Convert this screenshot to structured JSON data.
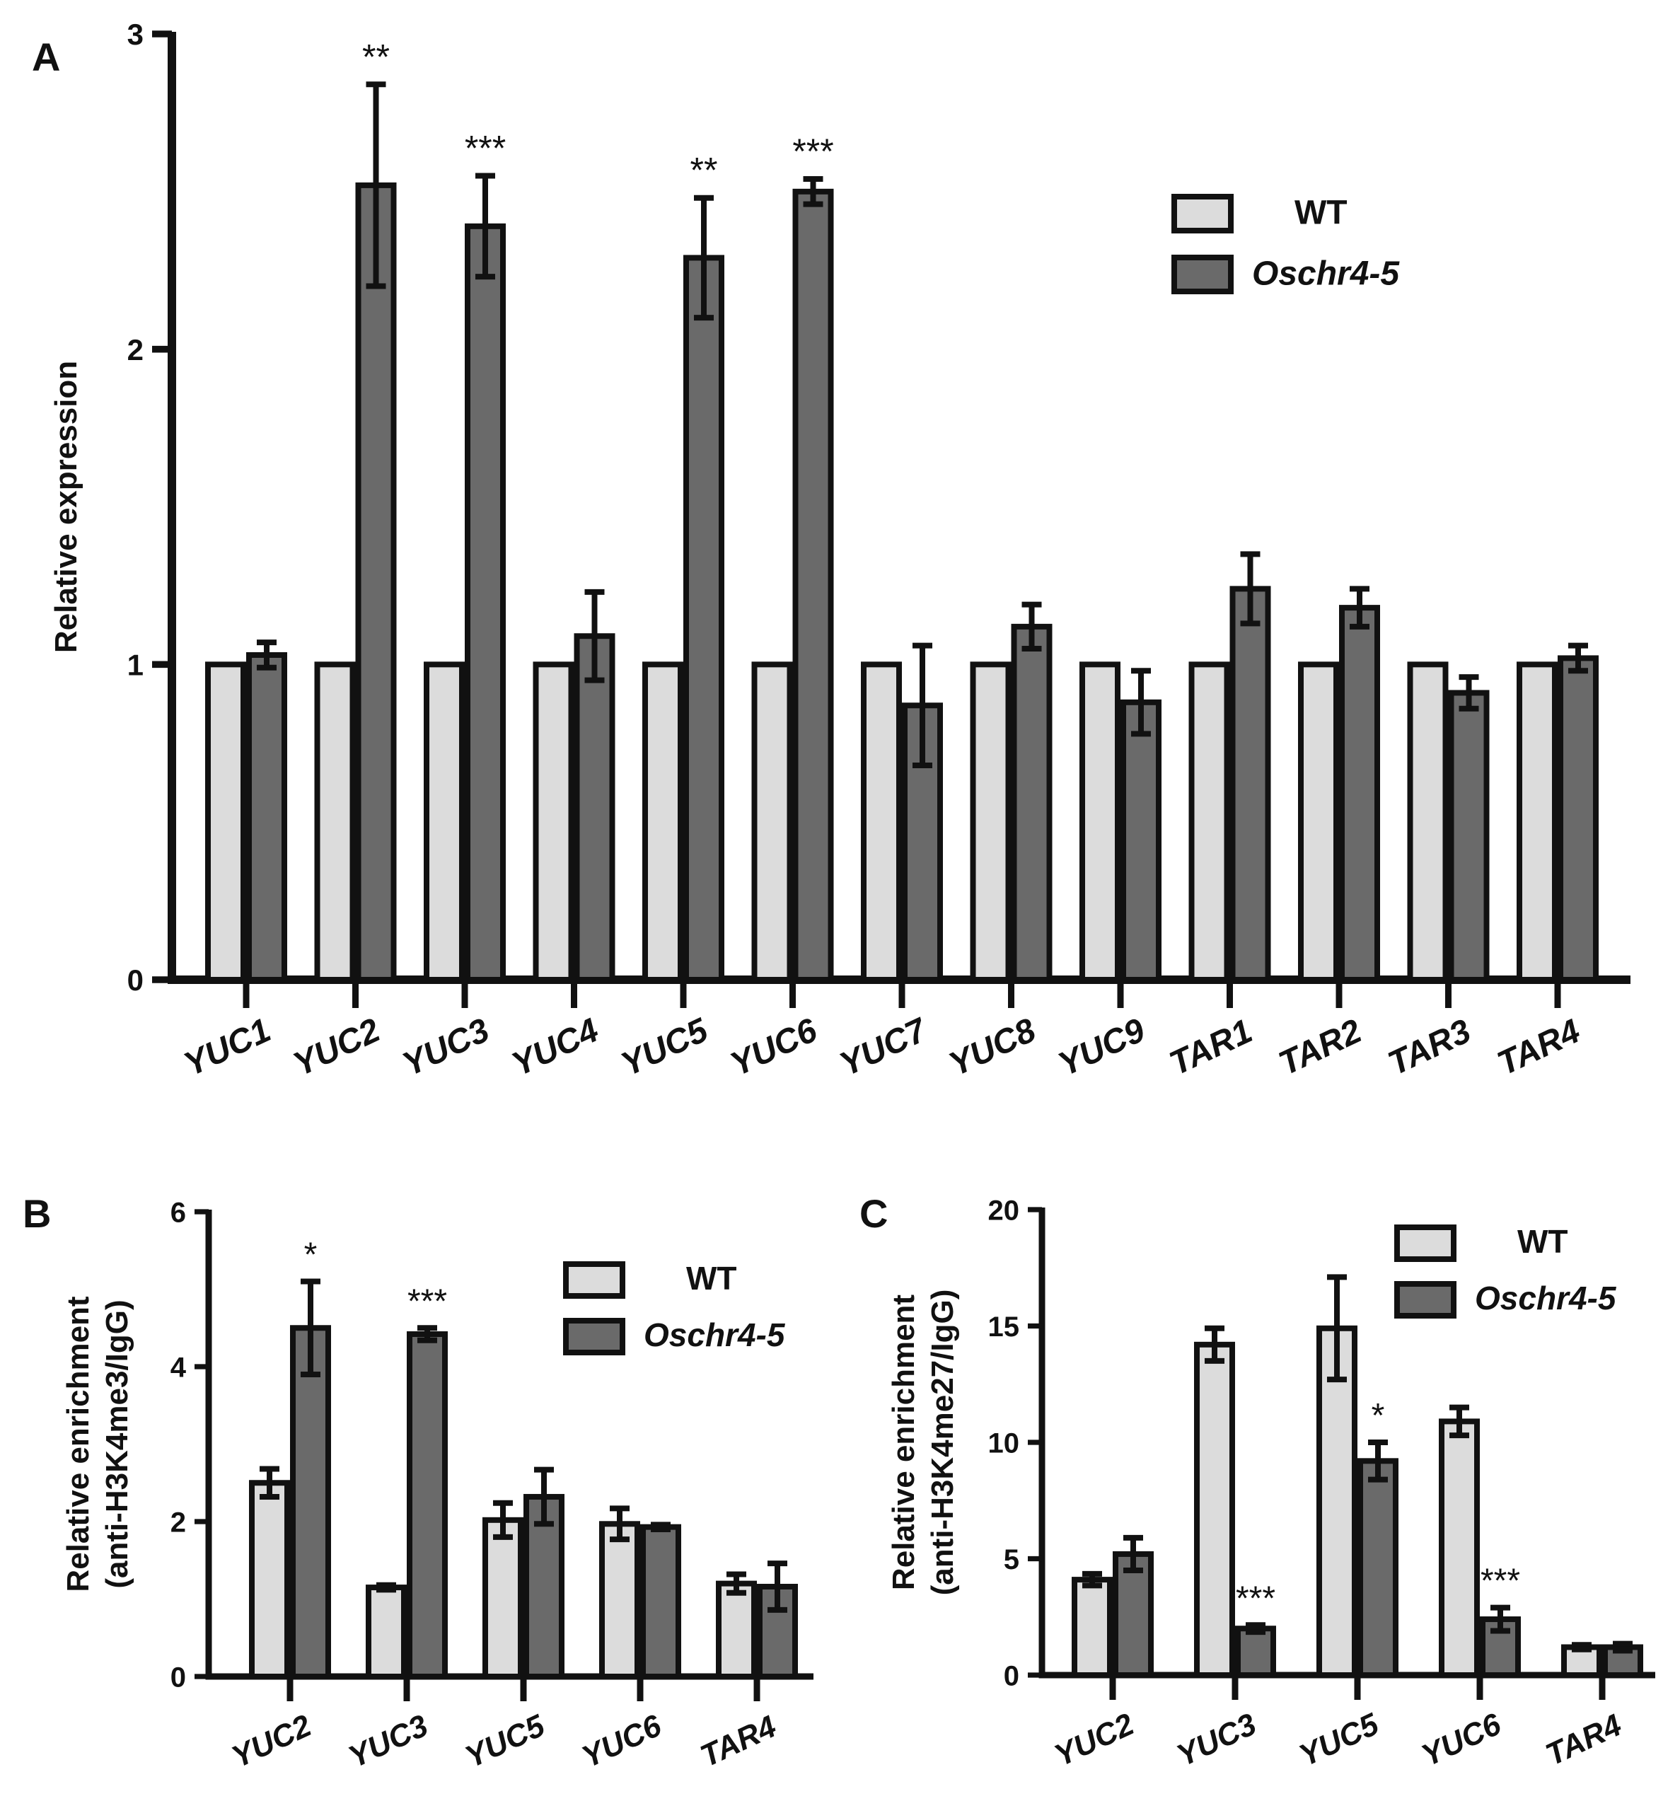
{
  "colors": {
    "wt": "#dcdcdc",
    "mutant": "#6a6a6a",
    "stroke": "#111111"
  },
  "legend": {
    "wt": "WT",
    "mutant": "Oschr4-5"
  },
  "chart_data": [
    {
      "panel": "A",
      "type": "bar",
      "ylabel": "Relative expression",
      "ylabel2": "",
      "ylim": [
        0,
        3
      ],
      "yticks": [
        "0",
        "1",
        "2",
        "3"
      ],
      "legend_position": "top-right",
      "categories": [
        "YUC1",
        "YUC2",
        "YUC3",
        "YUC4",
        "YUC5",
        "YUC6",
        "YUC7",
        "YUC8",
        "YUC9",
        "TAR1",
        "TAR2",
        "TAR3",
        "TAR4"
      ],
      "series": [
        {
          "name": "WT",
          "values": [
            1,
            1,
            1,
            1,
            1,
            1,
            1,
            1,
            1,
            1,
            1,
            1,
            1
          ],
          "errors": [
            0,
            0,
            0,
            0,
            0,
            0,
            0,
            0,
            0,
            0,
            0,
            0,
            0
          ]
        },
        {
          "name": "Oschr4-5",
          "values": [
            1.03,
            2.52,
            2.39,
            1.09,
            2.29,
            2.5,
            0.87,
            1.12,
            0.88,
            1.24,
            1.18,
            0.91,
            1.02
          ],
          "errors": [
            0.04,
            0.32,
            0.16,
            0.14,
            0.19,
            0.04,
            0.19,
            0.07,
            0.1,
            0.11,
            0.06,
            0.05,
            0.04
          ]
        }
      ],
      "annotations": [
        "",
        "**",
        "***",
        "",
        "**",
        "***",
        "",
        "",
        "",
        "",
        "",
        "",
        ""
      ]
    },
    {
      "panel": "B",
      "type": "bar",
      "ylabel": "Relative enrichment",
      "ylabel2": "(anti-H3K4me3/IgG)",
      "ylim": [
        0,
        6
      ],
      "yticks": [
        "0",
        "2",
        "4",
        "6"
      ],
      "legend_position": "top-right",
      "categories": [
        "YUC2",
        "YUC3",
        "YUC5",
        "YUC6",
        "TAR4"
      ],
      "series": [
        {
          "name": "WT",
          "values": [
            2.5,
            1.15,
            2.02,
            1.97,
            1.2
          ],
          "errors": [
            0.18,
            0.03,
            0.22,
            0.2,
            0.12
          ]
        },
        {
          "name": "Oschr4-5",
          "values": [
            4.5,
            4.42,
            2.32,
            1.93,
            1.16
          ],
          "errors": [
            0.6,
            0.08,
            0.35,
            0.03,
            0.3
          ]
        }
      ],
      "annotations": [
        "*",
        "***",
        "",
        "",
        ""
      ]
    },
    {
      "panel": "C",
      "type": "bar",
      "ylabel": "Relative enrichment",
      "ylabel2": "(anti-H3K4me27/IgG)",
      "ylim": [
        0,
        20
      ],
      "yticks": [
        "0",
        "5",
        "10",
        "15",
        "20"
      ],
      "legend_position": "top-right",
      "categories": [
        "YUC2",
        "YUC3",
        "YUC5",
        "YUC6",
        "TAR4"
      ],
      "series": [
        {
          "name": "WT",
          "values": [
            4.1,
            14.2,
            14.9,
            10.9,
            1.2
          ],
          "errors": [
            0.25,
            0.7,
            2.2,
            0.6,
            0.1
          ]
        },
        {
          "name": "Oschr4-5",
          "values": [
            5.2,
            2.0,
            9.2,
            2.4,
            1.2
          ],
          "errors": [
            0.7,
            0.15,
            0.8,
            0.5,
            0.15
          ]
        }
      ],
      "annotations": [
        "",
        "***",
        "*",
        "***",
        ""
      ]
    }
  ]
}
